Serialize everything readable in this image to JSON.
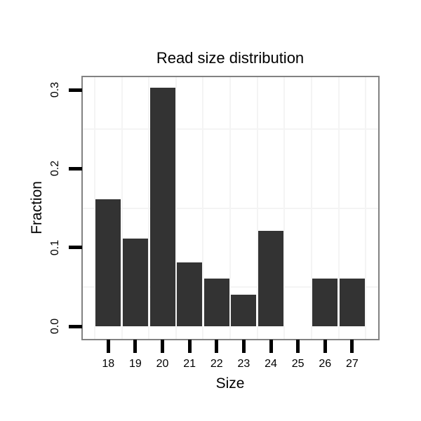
{
  "chart_data": {
    "type": "bar",
    "title": "Read size distribution",
    "xlabel": "Size",
    "ylabel": "Fraction",
    "categories": [
      18,
      19,
      20,
      21,
      22,
      23,
      24,
      25,
      26,
      27
    ],
    "x_tick_labels": [
      "18",
      "19",
      "20",
      "21",
      "22",
      "23",
      "24",
      "25",
      "26",
      "27"
    ],
    "values": [
      0.1616,
      0.1111,
      0.303,
      0.0808,
      0.0606,
      0.0404,
      0.1212,
      0.0,
      0.0606,
      0.0606
    ],
    "y_ticks": [
      0.0,
      0.1,
      0.2,
      0.3
    ],
    "y_tick_labels": [
      "0.0",
      "0.1",
      "0.2",
      "0.3"
    ],
    "ylim": [
      -0.0152,
      0.3182
    ],
    "xlim": [
      17.06,
      27.96
    ],
    "bar_width_units": 0.93,
    "grid": "minor-only",
    "minor_grid_x": [
      17.5,
      18.5,
      19.5,
      20.5,
      21.5,
      22.5,
      23.5,
      24.5,
      25.5,
      26.5,
      27.5
    ],
    "minor_grid_y": [
      0.05,
      0.15,
      0.25
    ],
    "legend": "none",
    "colors": {
      "bar": "#333333",
      "panel_border": "#828282",
      "grid_minor": "#f4f4f4",
      "tick": "#000000",
      "text": "#000000",
      "background": "#ffffff"
    }
  }
}
